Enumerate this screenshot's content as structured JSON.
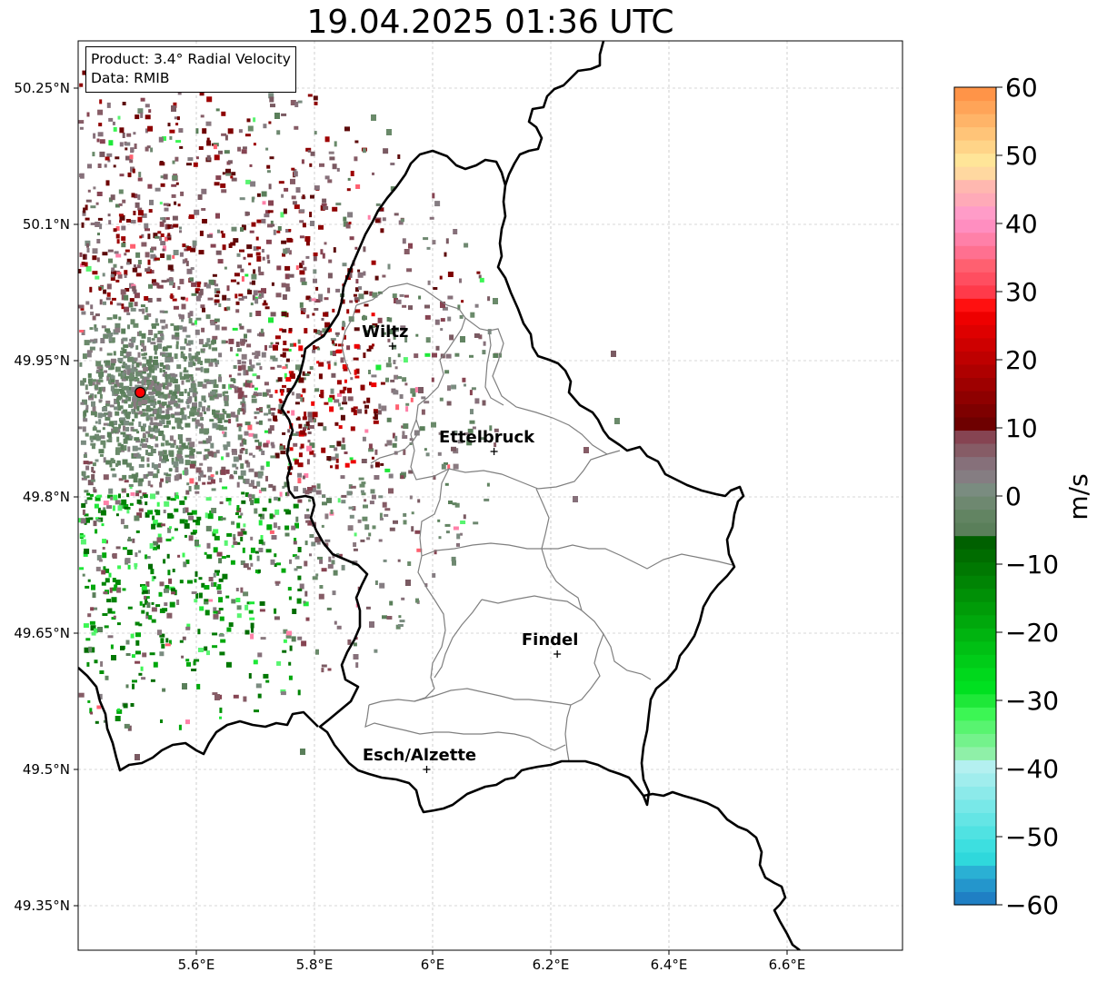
{
  "title": "19.04.2025 01:36 UTC",
  "info": {
    "product": "Product: 3.4° Radial Velocity",
    "data": "Data: RMIB"
  },
  "axes": {
    "lat_ticks": [
      {
        "value": 50.25,
        "label": "50.25°N"
      },
      {
        "value": 50.1,
        "label": "50.1°N"
      },
      {
        "value": 49.95,
        "label": "49.95°N"
      },
      {
        "value": 49.8,
        "label": "49.8°N"
      },
      {
        "value": 49.65,
        "label": "49.65°N"
      },
      {
        "value": 49.5,
        "label": "49.5°N"
      },
      {
        "value": 49.35,
        "label": "49.35°N"
      }
    ],
    "lon_ticks": [
      {
        "value": 5.6,
        "label": "5.6°E"
      },
      {
        "value": 5.8,
        "label": "5.8°E"
      },
      {
        "value": 6.0,
        "label": "6°E"
      },
      {
        "value": 6.2,
        "label": "6.2°E"
      },
      {
        "value": 6.4,
        "label": "6.4°E"
      },
      {
        "value": 6.6,
        "label": "6.6°E"
      }
    ],
    "lon_range": [
      5.4,
      6.8
    ],
    "lat_range": [
      49.3,
      50.3
    ],
    "grid": true
  },
  "radar_site": {
    "lon": 5.505,
    "lat": 49.915,
    "color": "#ff0000"
  },
  "cities": [
    {
      "name": "Wiltz",
      "lon": 5.932,
      "lat": 49.966
    },
    {
      "name": "Ettelbruck",
      "lon": 6.104,
      "lat": 49.85
    },
    {
      "name": "Findel",
      "lon": 6.211,
      "lat": 49.627
    },
    {
      "name": "Esch/Alzette",
      "lon": 5.99,
      "lat": 49.5
    }
  ],
  "colorbar": {
    "label": "m/s",
    "min": -60,
    "max": 60,
    "ticks": [
      {
        "value": 60,
        "label": "60"
      },
      {
        "value": 50,
        "label": "50"
      },
      {
        "value": 40,
        "label": "40"
      },
      {
        "value": 30,
        "label": "30"
      },
      {
        "value": 20,
        "label": "20"
      },
      {
        "value": 10,
        "label": "10"
      },
      {
        "value": 0,
        "label": "0"
      },
      {
        "value": -10,
        "label": "−10"
      },
      {
        "value": -20,
        "label": "−20"
      },
      {
        "value": -30,
        "label": "−30"
      },
      {
        "value": -40,
        "label": "−40"
      },
      {
        "value": -50,
        "label": "−50"
      },
      {
        "value": -60,
        "label": "−60"
      }
    ],
    "colors": [
      "#1f7fc4",
      "#2496cc",
      "#2ab0d4",
      "#2fd8dc",
      "#3ddfe0",
      "#50e2e2",
      "#64e5e5",
      "#78e8e8",
      "#8ceaea",
      "#a0eded",
      "#b4f0f0",
      "#8ff0a8",
      "#74f28c",
      "#58f470",
      "#3cf654",
      "#1ee838",
      "#00e020",
      "#00d81c",
      "#00cc18",
      "#00c014",
      "#00b410",
      "#00a80c",
      "#009c08",
      "#009006",
      "#008404",
      "#007802",
      "#006c00",
      "#006000",
      "#5a7f5a",
      "#628462",
      "#6e8870",
      "#7a8c80",
      "#857d82",
      "#86707a",
      "#865c66",
      "#864452",
      "#6e0000",
      "#7e0000",
      "#8e0000",
      "#9e0000",
      "#ae0000",
      "#be0000",
      "#ce0000",
      "#de0000",
      "#ee0000",
      "#ff1010",
      "#ff3a4a",
      "#ff4e60",
      "#ff6070",
      "#ff7090",
      "#ff80a8",
      "#ff8ec0",
      "#ff9cc8",
      "#ffaab8",
      "#ffb8b0",
      "#ffd8a0",
      "#ffe598",
      "#ffd488",
      "#ffc478",
      "#ffb468",
      "#ffa458",
      "#ff9448"
    ]
  }
}
